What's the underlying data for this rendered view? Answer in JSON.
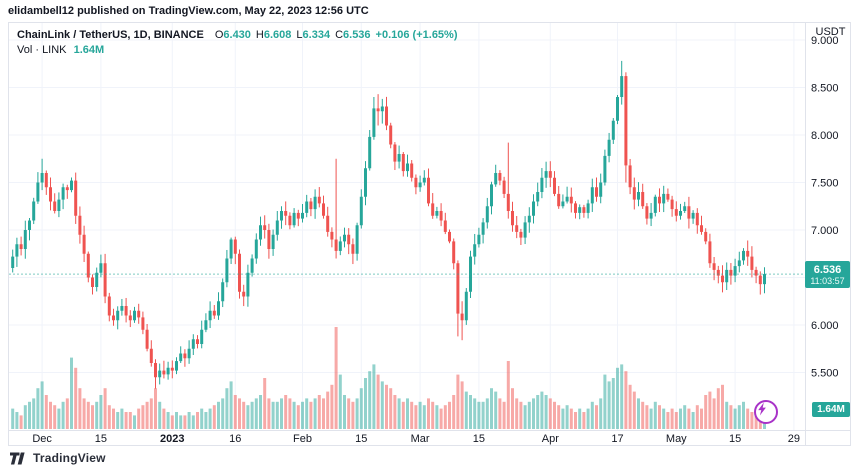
{
  "attribution": "elidambell12 published on TradingView.com, May 22, 2023 12:56 UTC",
  "legend": {
    "symbol": "ChainLink / TetherUS, 1D, BINANCE",
    "o_label": "O",
    "o": "6.430",
    "h_label": "H",
    "h": "6.608",
    "l_label": "L",
    "l": "6.334",
    "c_label": "C",
    "c": "6.536",
    "change": "+0.106 (+1.65%)",
    "vol_label": "Vol · LINK",
    "vol_value": "1.64M"
  },
  "price_axis": {
    "currency": "USDT",
    "ticks": [
      {
        "label": "9.000",
        "price": 9.0
      },
      {
        "label": "8.500",
        "price": 8.5
      },
      {
        "label": "8.000",
        "price": 8.0
      },
      {
        "label": "7.500",
        "price": 7.5
      },
      {
        "label": "7.000",
        "price": 7.0
      },
      {
        "label": "6.500",
        "price": 6.5
      },
      {
        "label": "6.000",
        "price": 6.0
      },
      {
        "label": "5.500",
        "price": 5.5
      }
    ],
    "last_price_label": "6.536",
    "countdown": "11:03:57",
    "volume_badge": "1.64M"
  },
  "time_axis": {
    "ticks": [
      {
        "label": "Dec",
        "day": 7,
        "bold": false
      },
      {
        "label": "15",
        "day": 21,
        "bold": false
      },
      {
        "label": "2023",
        "day": 38,
        "bold": true
      },
      {
        "label": "16",
        "day": 53,
        "bold": false
      },
      {
        "label": "Feb",
        "day": 69,
        "bold": false
      },
      {
        "label": "15",
        "day": 83,
        "bold": false
      },
      {
        "label": "Mar",
        "day": 97,
        "bold": false
      },
      {
        "label": "15",
        "day": 111,
        "bold": false
      },
      {
        "label": "Apr",
        "day": 128,
        "bold": false
      },
      {
        "label": "17",
        "day": 144,
        "bold": false
      },
      {
        "label": "May",
        "day": 158,
        "bold": false
      },
      {
        "label": "15",
        "day": 172,
        "bold": false
      },
      {
        "label": "29",
        "day": 186,
        "bold": false
      }
    ]
  },
  "colors": {
    "up": "#26a69a",
    "down": "#ef5350",
    "grid": "#f0f3fa",
    "axis_text": "#131722",
    "frame": "#e0e3eb",
    "badge": "#26a69a",
    "flash_purple": "#a832c8",
    "logo": "#2a2e39"
  },
  "chart_data": {
    "type": "candlestick_with_volume",
    "title": "ChainLink / TetherUS, 1D, BINANCE",
    "ylabel": "USDT",
    "ylim": [
      5.2,
      9.0
    ],
    "grid": true,
    "last_price": 6.536,
    "last_volume_m": 1.64,
    "first_open": 6.6,
    "closes": [
      6.72,
      6.85,
      6.8,
      7.0,
      7.1,
      7.3,
      7.5,
      7.6,
      7.45,
      7.3,
      7.2,
      7.32,
      7.45,
      7.42,
      7.52,
      7.15,
      6.95,
      6.75,
      6.5,
      6.4,
      6.55,
      6.65,
      6.3,
      6.1,
      6.05,
      6.15,
      6.2,
      6.1,
      6.05,
      6.15,
      6.08,
      5.95,
      5.75,
      5.6,
      5.45,
      5.52,
      5.48,
      5.55,
      5.52,
      5.62,
      5.7,
      5.65,
      5.75,
      5.85,
      5.8,
      5.95,
      6.05,
      6.15,
      6.1,
      6.25,
      6.45,
      6.7,
      6.9,
      6.75,
      6.35,
      6.3,
      6.55,
      6.7,
      6.9,
      7.05,
      7.0,
      6.8,
      6.95,
      7.1,
      7.2,
      7.15,
      7.05,
      7.18,
      7.12,
      7.18,
      7.3,
      7.22,
      7.35,
      7.28,
      7.15,
      6.98,
      6.9,
      6.78,
      6.88,
      6.95,
      6.85,
      6.75,
      7.05,
      7.35,
      7.65,
      7.98,
      8.28,
      8.25,
      8.3,
      8.1,
      7.9,
      7.72,
      7.8,
      7.62,
      7.7,
      7.55,
      7.45,
      7.5,
      7.55,
      7.28,
      7.15,
      7.2,
      7.1,
      6.98,
      6.88,
      6.65,
      6.12,
      6.05,
      6.35,
      6.72,
      6.85,
      6.95,
      7.08,
      7.25,
      7.48,
      7.6,
      7.52,
      7.38,
      7.2,
      7.05,
      6.98,
      6.92,
      7.08,
      7.15,
      7.3,
      7.4,
      7.55,
      7.62,
      7.55,
      7.38,
      7.25,
      7.3,
      7.35,
      7.28,
      7.18,
      7.24,
      7.18,
      7.28,
      7.45,
      7.35,
      7.5,
      7.78,
      7.95,
      8.15,
      8.4,
      8.62,
      7.68,
      7.45,
      7.32,
      7.4,
      7.25,
      7.12,
      7.18,
      7.35,
      7.28,
      7.38,
      7.32,
      7.22,
      7.15,
      7.2,
      7.25,
      7.12,
      7.18,
      7.05,
      6.98,
      6.88,
      6.65,
      6.58,
      6.52,
      6.45,
      6.58,
      6.52,
      6.62,
      6.68,
      6.78,
      6.72,
      6.58,
      6.52,
      6.43,
      6.536
    ],
    "volumes_m": [
      6,
      5,
      4,
      7,
      8,
      9,
      12,
      14,
      10,
      8,
      7,
      6,
      8,
      9,
      21,
      18,
      12,
      9,
      8,
      7,
      8,
      10,
      12,
      7,
      6,
      5,
      6,
      5,
      5,
      4,
      6,
      7,
      8,
      9,
      12,
      8,
      6,
      5,
      4,
      5,
      4,
      4,
      5,
      4,
      5,
      6,
      5,
      6,
      7,
      8,
      9,
      12,
      14,
      10,
      9,
      8,
      7,
      8,
      9,
      10,
      15,
      9,
      8,
      8,
      9,
      10,
      9,
      8,
      7,
      8,
      9,
      8,
      9,
      10,
      9,
      11,
      13,
      30,
      16,
      10,
      9,
      8,
      9,
      12,
      15,
      17,
      19,
      16,
      14,
      13,
      12,
      10,
      9,
      8,
      9,
      8,
      7,
      8,
      7,
      9,
      8,
      7,
      6,
      7,
      8,
      10,
      16,
      14,
      11,
      10,
      9,
      8,
      8,
      9,
      12,
      11,
      9,
      8,
      20,
      12,
      9,
      8,
      7,
      8,
      9,
      10,
      11,
      10,
      9,
      8,
      7,
      6,
      7,
      6,
      5,
      6,
      5,
      6,
      8,
      7,
      9,
      16,
      14,
      15,
      18,
      19,
      17,
      13,
      11,
      9,
      8,
      7,
      6,
      8,
      7,
      6,
      5,
      6,
      5,
      6,
      7,
      6,
      5,
      7,
      6,
      10,
      11,
      9,
      12,
      13,
      8,
      7,
      6,
      7,
      8,
      6,
      5,
      4,
      3,
      1.64
    ],
    "ohlc_overrides": {
      "7": [
        7.5,
        7.75,
        7.42,
        7.6
      ],
      "34": [
        5.6,
        5.64,
        5.33,
        5.45
      ],
      "77": [
        6.9,
        7.75,
        6.7,
        6.78
      ],
      "86": [
        7.98,
        8.4,
        7.95,
        8.28
      ],
      "87": [
        8.28,
        8.43,
        8.1,
        8.25
      ],
      "88": [
        8.25,
        8.38,
        8.12,
        8.3
      ],
      "106": [
        6.65,
        6.68,
        5.88,
        6.12
      ],
      "107": [
        6.12,
        6.25,
        5.84,
        6.05
      ],
      "118": [
        7.38,
        7.92,
        7.12,
        7.2
      ],
      "145": [
        8.4,
        8.78,
        8.32,
        8.62
      ],
      "146": [
        8.62,
        8.66,
        7.5,
        7.68
      ],
      "179": [
        6.43,
        6.608,
        6.334,
        6.536
      ]
    }
  },
  "footer": {
    "logo_text": "TradingView"
  }
}
